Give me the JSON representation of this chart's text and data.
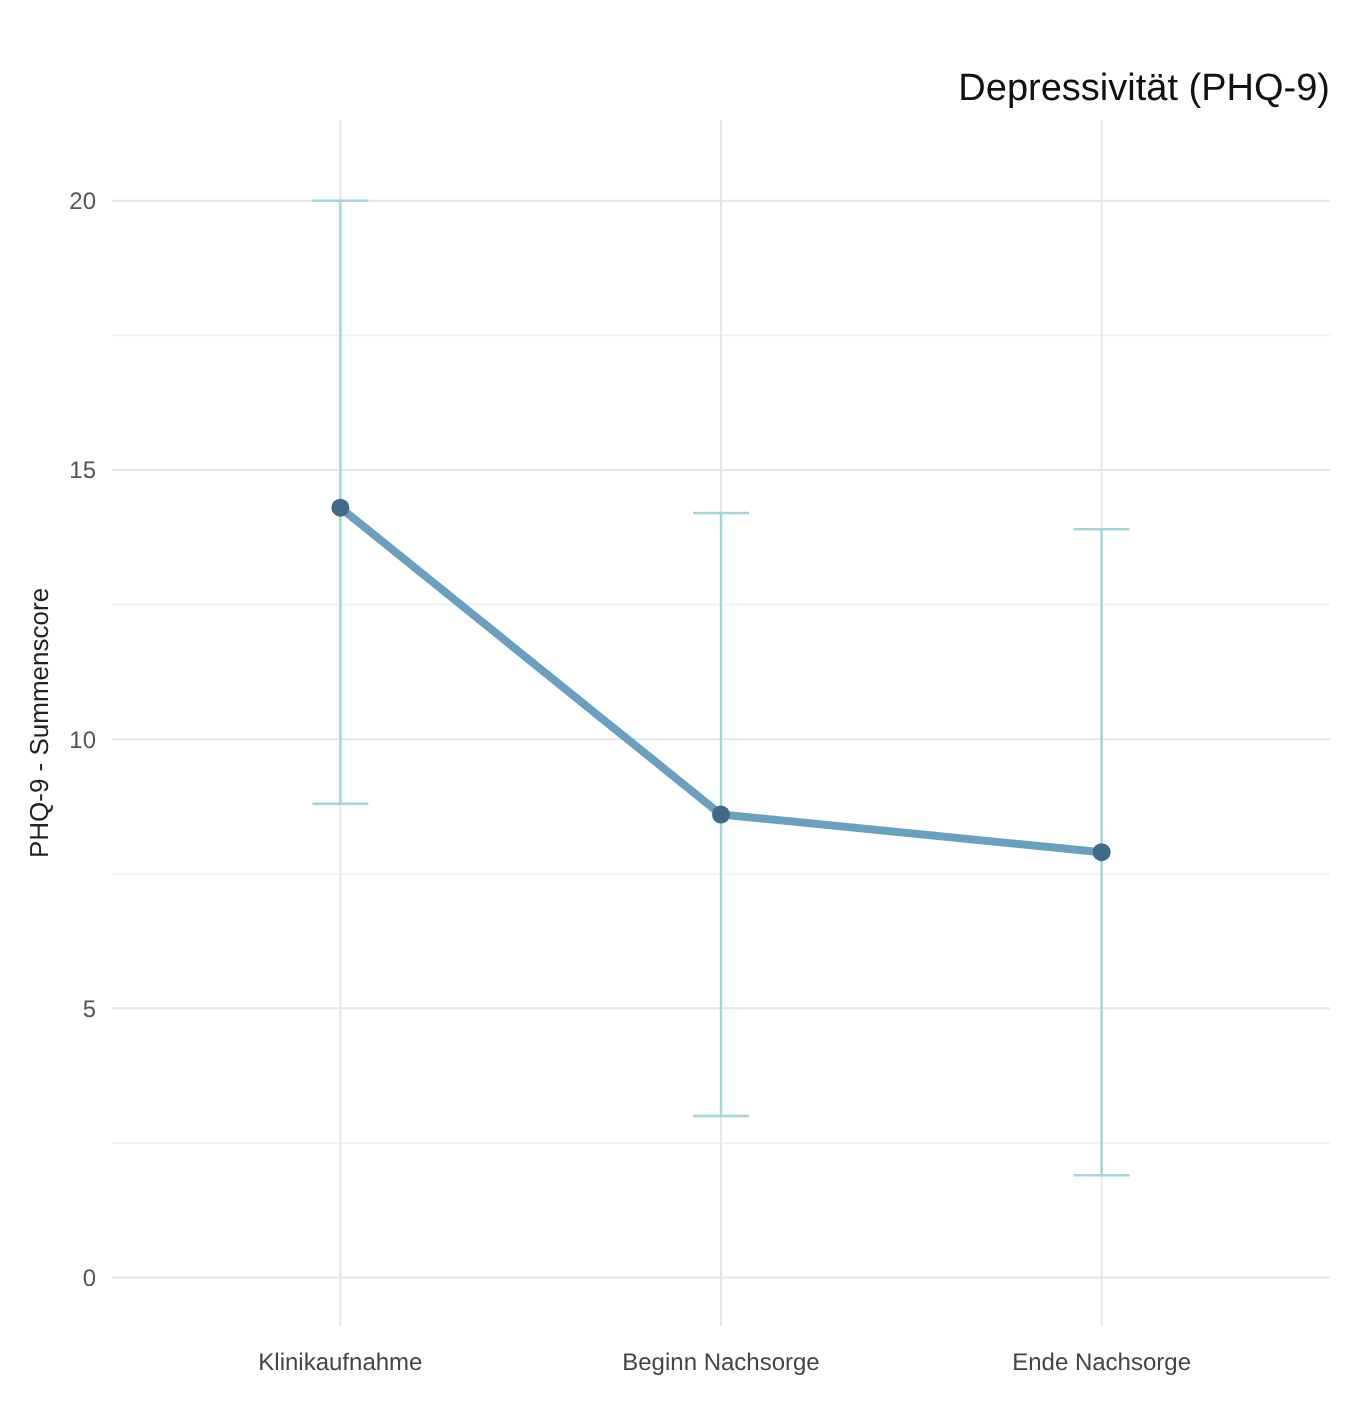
{
  "chart_data": {
    "type": "line",
    "title": "Depressivität (PHQ-9)",
    "ylabel": "PHQ-9 - Summenscore",
    "categories": [
      "Klinikaufnahme",
      "Beginn Nachsorge",
      "Ende Nachsorge"
    ],
    "series": [
      {
        "color": "#6a9fc0",
        "values": [
          14.3,
          8.6,
          7.9
        ],
        "errors": [
          [
            8.8,
            20.0
          ],
          [
            3.0,
            14.2
          ],
          [
            1.9,
            13.9
          ]
        ]
      }
    ],
    "ylim": [
      -0.9,
      21.5
    ],
    "yticks": [
      0,
      {
        "value": 2.5,
        "label": null
      },
      5,
      {
        "value": 7.5,
        "label": null
      },
      10,
      {
        "value": 12.5,
        "label": null
      },
      15,
      {
        "value": 17.5,
        "label": null
      },
      20
    ],
    "grid": true,
    "marker": "circle",
    "line_style": "solid"
  }
}
